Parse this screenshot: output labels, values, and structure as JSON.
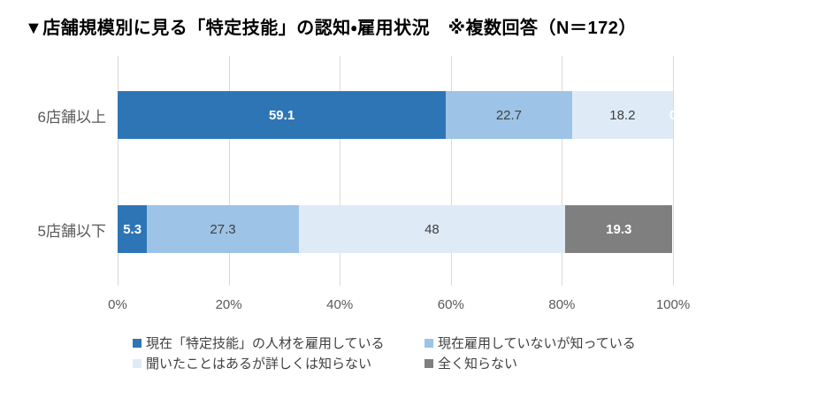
{
  "title": "▼店舗規模別に見る「特定技能」の認知・雇用状況　※複数回答（N＝172）",
  "chart_data": {
    "type": "bar",
    "orientation": "horizontal-stacked",
    "title": "▼店舗規模別に見る「特定技能」の認知・雇用状況　※複数回答（N＝172）",
    "categories": [
      "6店舗以上",
      "5店舗以下"
    ],
    "series": [
      {
        "name": "現在「特定技能」の人材を雇用している",
        "values": [
          59.1,
          5.3
        ],
        "labels": [
          "59.1",
          "5.3"
        ],
        "color": "#2E75B6",
        "label_color": "#FFFFFF",
        "label_weight": "bold"
      },
      {
        "name": "現在雇用していないが知っている",
        "values": [
          22.7,
          27.3
        ],
        "labels": [
          "22.7",
          "27.3"
        ],
        "color": "#9DC3E6",
        "label_color": "#404040",
        "label_weight": "normal"
      },
      {
        "name": "聞いたことはあるが詳しくは知らない",
        "values": [
          18.2,
          48
        ],
        "labels": [
          "18.2",
          "48"
        ],
        "color": "#DEEBF7",
        "label_color": "#404040",
        "label_weight": "normal"
      },
      {
        "name": "全く知らない",
        "values": [
          0,
          19.3
        ],
        "labels": [
          "0",
          "19.3"
        ],
        "color": "#7F7F7F",
        "label_color": "#FFFFFF",
        "label_weight": "bold"
      }
    ],
    "x_ticks": [
      "0%",
      "20%",
      "40%",
      "60%",
      "80%",
      "100%"
    ],
    "xlim": [
      0,
      100
    ],
    "grid": true,
    "legend_position": "bottom",
    "legend_rows": [
      [
        0,
        1
      ],
      [
        2,
        3
      ]
    ],
    "colors": {
      "background": "#FFFFFF",
      "gridline": "#D9D9D9",
      "title": "#000000",
      "tick_label": "#595959",
      "category_label": "#595959",
      "legend_text": "#404040"
    }
  }
}
